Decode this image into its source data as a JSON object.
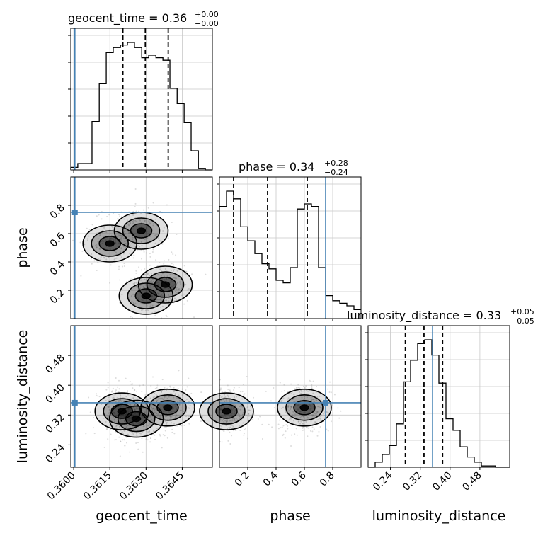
{
  "chart_data": {
    "type": "corner",
    "parameters": [
      "geocent_time",
      "phase",
      "luminosity_distance"
    ],
    "truths": [
      0.36005,
      0.75,
      0.353
    ],
    "ranges": [
      [
        0.35988,
        0.36575
      ],
      [
        0.0,
        1.0
      ],
      [
        0.18,
        0.56
      ]
    ],
    "titles": [
      {
        "label": "geocent_time",
        "median": "0.36",
        "plus": "+0.00",
        "minus": "−0.00"
      },
      {
        "label": "phase",
        "median": "0.34",
        "plus": "+0.28",
        "minus": "−0.24"
      },
      {
        "label": "luminosity_distance",
        "median": "0.33",
        "plus": "+0.05",
        "minus": "−0.05"
      }
    ],
    "quantiles": [
      [
        0.36204,
        0.36297,
        0.36392
      ],
      [
        0.1,
        0.34,
        0.62
      ],
      [
        0.28,
        0.33,
        0.38
      ]
    ],
    "ticks": {
      "geocent_time": [
        "0.3600",
        "0.3615",
        "0.3630",
        "0.3645"
      ],
      "phase": [
        "0.2",
        "0.4",
        "0.6",
        "0.8"
      ],
      "luminosity_distance": [
        "0.24",
        "0.32",
        "0.40",
        "0.48"
      ]
    },
    "tick_values": {
      "geocent_time": [
        0.36,
        0.3615,
        0.363,
        0.3645
      ],
      "phase": [
        0.2,
        0.4,
        0.6,
        0.8
      ],
      "luminosity_distance": [
        0.24,
        0.32,
        0.4,
        0.48
      ]
    },
    "hist_geocent_time": {
      "edges": [
        0.35988,
        0.36017,
        0.36047,
        0.36076,
        0.36106,
        0.36135,
        0.36164,
        0.36194,
        0.36223,
        0.36252,
        0.36282,
        0.36311,
        0.36341,
        0.3637,
        0.36399,
        0.36429,
        0.36458,
        0.36487,
        0.36517,
        0.36546,
        0.36575
      ],
      "density": [
        0.02,
        0.05,
        0.05,
        0.38,
        0.68,
        0.92,
        0.96,
        0.98,
        1.0,
        0.96,
        0.88,
        0.9,
        0.88,
        0.86,
        0.64,
        0.52,
        0.37,
        0.15,
        0.01,
        0.0
      ]
    },
    "hist_phase": {
      "edges": [
        0.0,
        0.05,
        0.1,
        0.15,
        0.2,
        0.25,
        0.3,
        0.35,
        0.4,
        0.45,
        0.5,
        0.55,
        0.6,
        0.65,
        0.7,
        0.75,
        0.8,
        0.85,
        0.9,
        0.95,
        1.0
      ],
      "density": [
        0.88,
        1.0,
        0.94,
        0.72,
        0.61,
        0.51,
        0.43,
        0.39,
        0.3,
        0.28,
        0.4,
        0.86,
        0.9,
        0.88,
        0.4,
        0.18,
        0.14,
        0.12,
        0.1,
        0.07
      ]
    },
    "hist_luminosity_distance": {
      "edges": [
        0.18,
        0.199,
        0.218,
        0.237,
        0.256,
        0.275,
        0.294,
        0.313,
        0.332,
        0.351,
        0.37,
        0.389,
        0.408,
        0.427,
        0.446,
        0.465,
        0.484,
        0.503,
        0.522,
        0.541,
        0.56
      ],
      "density": [
        0.0,
        0.04,
        0.1,
        0.17,
        0.34,
        0.67,
        0.84,
        0.97,
        1.0,
        0.88,
        0.66,
        0.38,
        0.29,
        0.16,
        0.08,
        0.04,
        0.01,
        0.01,
        0.0,
        0.0
      ]
    },
    "contour_peaks": {
      "geocent_time_vs_phase": [
        [
          0.3615,
          0.53
        ],
        [
          0.363,
          0.16
        ],
        [
          0.3638,
          0.24
        ],
        [
          0.3628,
          0.62
        ]
      ],
      "geocent_time_vs_luminosity_distance": [
        [
          0.362,
          0.33
        ],
        [
          0.3626,
          0.31
        ],
        [
          0.3639,
          0.34
        ]
      ],
      "phase_vs_luminosity_distance": [
        [
          0.05,
          0.33
        ],
        [
          0.6,
          0.34
        ]
      ]
    },
    "grid": true,
    "truth_color": "#4682b4",
    "hist_color": "#000000",
    "contour_color": "#000000",
    "quantile_color": "#000000"
  }
}
